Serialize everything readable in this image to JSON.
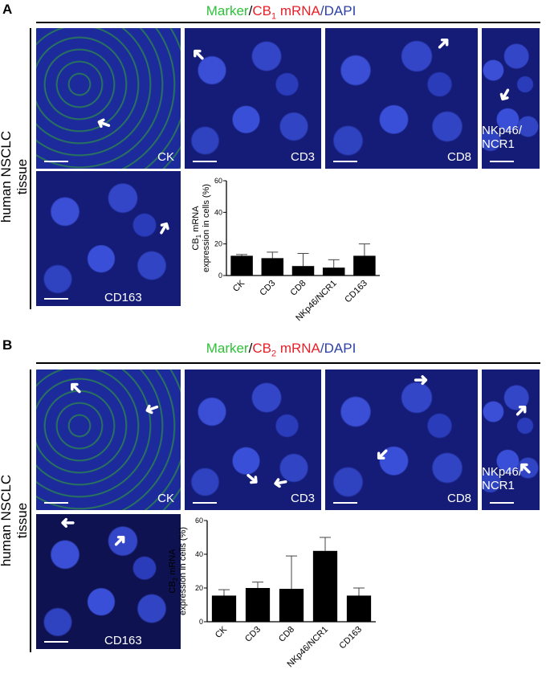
{
  "panels": [
    {
      "letter": "A",
      "title": {
        "marker": "Marker",
        "sep1": "/",
        "mrna": "CB",
        "sub": "1",
        "mrna2": " mRNA",
        "sep2": "/",
        "dapi": "DAPI"
      },
      "side_label": "human NSCLC tissue",
      "images": [
        "CK",
        "CD3",
        "CD8",
        "NKp46/ NCR1",
        "CD163"
      ]
    },
    {
      "letter": "B",
      "title": {
        "marker": "Marker",
        "sep1": "/",
        "mrna": "CB",
        "sub": "2",
        "mrna2": " mRNA",
        "sep2": "/",
        "dapi": "DAPI"
      },
      "side_label": "human NSCLC tissue",
      "images": [
        "CK",
        "CD3",
        "CD8",
        "NKp46/ NCR1",
        "CD163"
      ]
    }
  ],
  "chart_data": [
    {
      "type": "bar",
      "title": "",
      "ylabel_line1": "CB1 mRNA",
      "ylabel_line2": "expression in cells (%)",
      "categories": [
        "CK",
        "CD3",
        "CD8",
        "NKp46/NCR1",
        "CD163"
      ],
      "values": [
        12.5,
        11,
        6,
        5,
        12.5
      ],
      "errors": [
        0.8,
        3.8,
        8,
        5,
        7.5
      ],
      "ylim": [
        0,
        60
      ],
      "yticks": [
        0,
        20,
        40,
        60
      ],
      "bar_color": "#000000"
    },
    {
      "type": "bar",
      "title": "",
      "ylabel_line1": "CB2 mRNA",
      "ylabel_line2": "expression in cells (%)",
      "categories": [
        "CK",
        "CD3",
        "CD8",
        "NKp46/NCR1",
        "CD163"
      ],
      "values": [
        15.5,
        20,
        19.5,
        42,
        15.5
      ],
      "errors": [
        3.5,
        3.5,
        19.5,
        8,
        4.5
      ],
      "ylim": [
        0,
        60
      ],
      "yticks": [
        0,
        20,
        40,
        60
      ],
      "bar_color": "#000000"
    }
  ],
  "colors": {
    "marker": "#2ec23a",
    "mrna": "#e8202a",
    "dapi": "#2c3ea8"
  }
}
